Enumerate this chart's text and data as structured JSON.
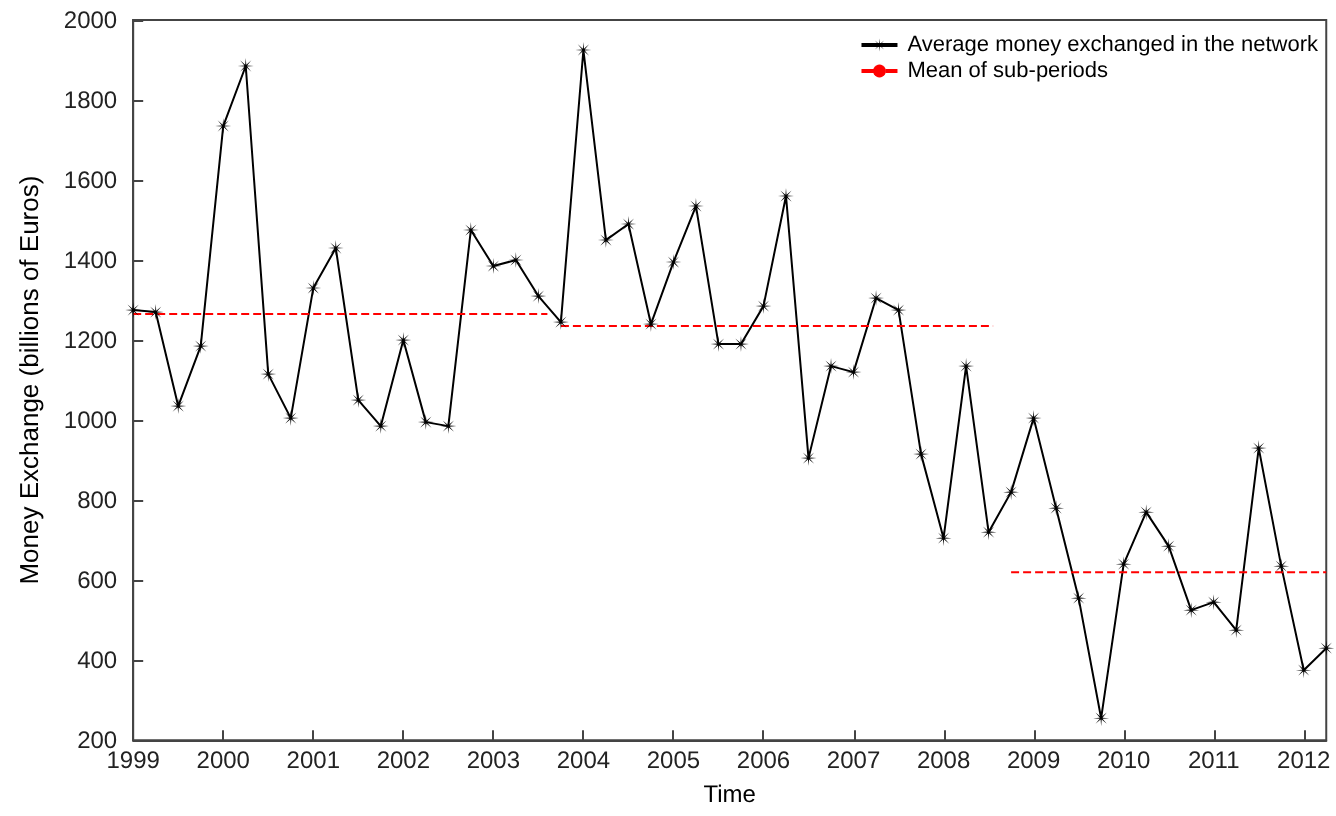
{
  "chart_data": {
    "type": "line",
    "xlabel": "Time",
    "ylabel": "Money Exchange (billions of Euros)",
    "x": [
      1999,
      1999.25,
      1999.5,
      1999.75,
      2000,
      2000.25,
      2000.5,
      2000.75,
      2001,
      2001.25,
      2001.5,
      2001.75,
      2002,
      2002.25,
      2002.5,
      2002.75,
      2003,
      2003.25,
      2003.5,
      2003.75,
      2004,
      2004.25,
      2004.5,
      2004.75,
      2005,
      2005.25,
      2005.5,
      2005.75,
      2006,
      2006.25,
      2006.5,
      2006.75,
      2007,
      2007.25,
      2007.5,
      2007.75,
      2008,
      2008.25,
      2008.5,
      2008.75,
      2009,
      2009.25,
      2009.5,
      2009.75,
      2010,
      2010.25,
      2010.5,
      2010.75,
      2011,
      2011.25,
      2011.5,
      2011.75,
      2012,
      2012.25
    ],
    "series": [
      {
        "name": "Average money exchanged in the network",
        "color": "#000000",
        "marker": "cross",
        "line_style": "solid",
        "values": [
          1275,
          1270,
          1035,
          1185,
          1735,
          1885,
          1115,
          1005,
          1330,
          1430,
          1050,
          985,
          1200,
          995,
          985,
          1475,
          1385,
          1400,
          1310,
          1245,
          1925,
          1450,
          1490,
          1240,
          1395,
          1535,
          1190,
          1190,
          1285,
          1560,
          905,
          1135,
          1120,
          1305,
          1275,
          915,
          705,
          1135,
          720,
          820,
          1005,
          780,
          555,
          255,
          640,
          770,
          685,
          525,
          545,
          475,
          930,
          635,
          375,
          430
        ]
      },
      {
        "name": "Mean of sub-periods",
        "color": "#ff0000",
        "marker": "none",
        "line_style": "dashed",
        "x": [
          1999,
          2003.6,
          2003.7,
          2003.75,
          2008.55,
          2008.7,
          2008.75,
          2012.25
        ],
        "values": [
          1265,
          1265,
          null,
          1235,
          1235,
          null,
          620,
          620
        ]
      }
    ],
    "xlim": [
      1999,
      2012.25
    ],
    "xticks": [
      1999,
      2000,
      2001,
      2002,
      2003,
      2004,
      2005,
      2006,
      2007,
      2008,
      2009,
      2010,
      2011,
      2012
    ],
    "ylim": [
      200,
      2000
    ],
    "yticks": [
      200,
      400,
      600,
      800,
      1000,
      1200,
      1400,
      1600,
      1800,
      2000
    ],
    "grid": false,
    "legend": "top right"
  }
}
